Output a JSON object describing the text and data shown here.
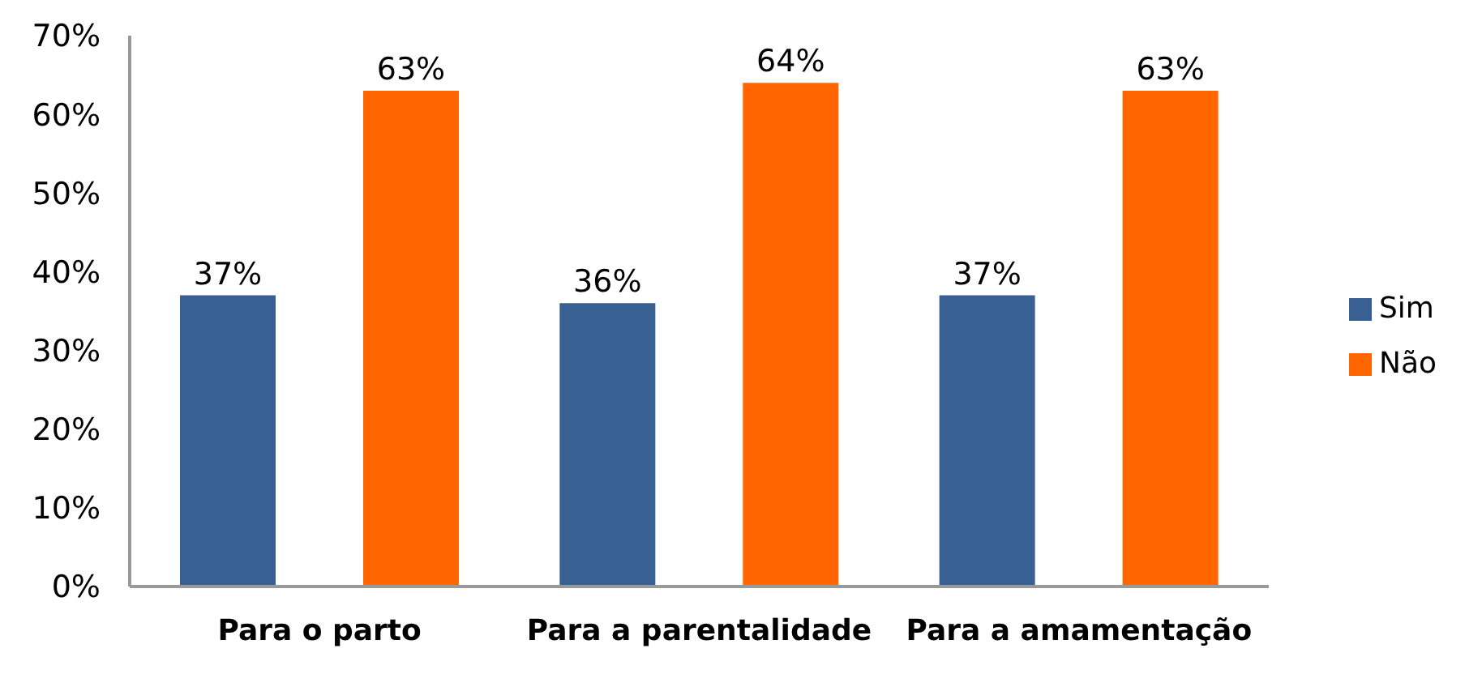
{
  "chart_data": {
    "type": "bar",
    "categories": [
      "Para o parto",
      "Para a parentalidade",
      "Para a amamentação"
    ],
    "series": [
      {
        "name": "Sim",
        "color": "#386092",
        "values": [
          37,
          36,
          37
        ],
        "value_labels": [
          "37%",
          "36%",
          "37%"
        ]
      },
      {
        "name": "Não",
        "color": "#ff6600",
        "values": [
          63,
          64,
          63
        ],
        "value_labels": [
          "63%",
          "64%",
          "63%"
        ]
      }
    ],
    "ylim": [
      0,
      70
    ],
    "yticks": [
      {
        "value": 0,
        "label": "0%"
      },
      {
        "value": 10,
        "label": "10%"
      },
      {
        "value": 20,
        "label": "20%"
      },
      {
        "value": 30,
        "label": "30%"
      },
      {
        "value": 40,
        "label": "40%"
      },
      {
        "value": 50,
        "label": "50%"
      },
      {
        "value": 60,
        "label": "60%"
      },
      {
        "value": 70,
        "label": "70%"
      }
    ],
    "legend": "right"
  }
}
